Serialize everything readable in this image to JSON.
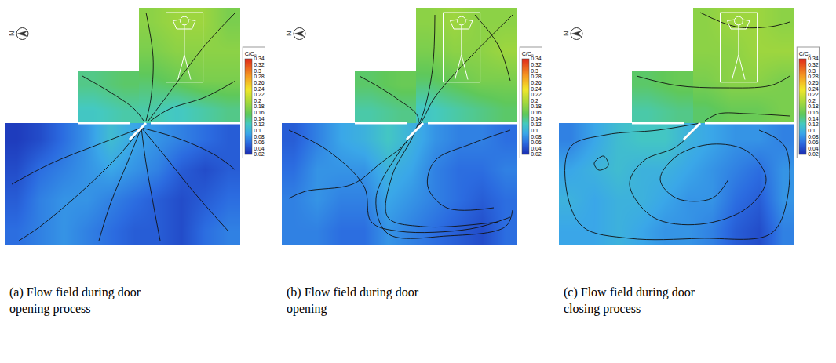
{
  "chart_data": [
    {
      "type": "heatmap",
      "title": "(a) Flow field during door opening process",
      "xlim": [
        0,
        10
      ],
      "ylim": [
        0,
        10.1
      ],
      "tick_labels": false,
      "annotations": [
        "N"
      ],
      "colorbar": {
        "title": "C/C₀",
        "range": [
          0.02,
          0.34
        ],
        "ticks": [
          0.02,
          0.04,
          0.06,
          0.08,
          0.1,
          0.12,
          0.14,
          0.16,
          0.18,
          0.2,
          0.22,
          0.24,
          0.26,
          0.28,
          0.3,
          0.32,
          0.34
        ]
      },
      "regions": {
        "lower": {
          "x": [
            0.5,
            1.5,
            2.5,
            3.5,
            4.5,
            5.5,
            6.5,
            7.5,
            8.5,
            9.5
          ],
          "y": [
            0.65,
            1.95,
            3.25,
            4.55
          ],
          "z": [
            [
              0.06,
              0.07,
              0.08,
              0.07,
              0.06,
              0.05,
              0.05,
              0.04,
              0.06,
              0.07
            ],
            [
              0.05,
              0.07,
              0.08,
              0.08,
              0.07,
              0.06,
              0.05,
              0.04,
              0.05,
              0.06
            ],
            [
              0.04,
              0.06,
              0.07,
              0.08,
              0.09,
              0.08,
              0.07,
              0.05,
              0.04,
              0.05
            ],
            [
              0.03,
              0.04,
              0.06,
              0.08,
              0.11,
              0.09,
              0.08,
              0.07,
              0.06,
              0.05
            ]
          ]
        },
        "upper_left": {
          "x": [
            3.75,
            5.05
          ],
          "y": [
            5.75,
            6.85
          ],
          "z": [
            [
              0.12,
              0.13
            ],
            [
              0.14,
              0.15
            ]
          ]
        },
        "upper_right": {
          "x": [
            6.2375,
            7.3125,
            8.3875,
            9.4625
          ],
          "y": [
            5.8125,
            7.0375,
            8.2625,
            9.4875
          ],
          "z": [
            [
              0.13,
              0.12,
              0.13,
              0.14
            ],
            [
              0.15,
              0.16,
              0.17,
              0.17
            ],
            [
              0.17,
              0.18,
              0.18,
              0.18
            ],
            [
              0.18,
              0.19,
              0.19,
              0.17
            ]
          ]
        }
      },
      "streamlines": [
        [
          [
            5.8,
            5.0
          ],
          [
            5.0,
            4.0
          ],
          [
            3.5,
            2.5
          ],
          [
            1.5,
            0.8
          ],
          [
            0.6,
            0.2
          ]
        ],
        [
          [
            5.8,
            5.0
          ],
          [
            5.2,
            3.5
          ],
          [
            4.5,
            1.8
          ],
          [
            4.0,
            0.2
          ]
        ],
        [
          [
            5.8,
            5.0
          ],
          [
            6.0,
            3.5
          ],
          [
            6.3,
            1.8
          ],
          [
            6.6,
            0.2
          ]
        ],
        [
          [
            5.8,
            5.0
          ],
          [
            6.8,
            3.8
          ],
          [
            8.0,
            2.3
          ],
          [
            9.5,
            0.6
          ]
        ],
        [
          [
            5.8,
            5.0
          ],
          [
            4.0,
            4.3
          ],
          [
            2.0,
            3.5
          ],
          [
            0.3,
            2.6
          ]
        ],
        [
          [
            5.8,
            5.0
          ],
          [
            7.5,
            4.5
          ],
          [
            9.0,
            3.8
          ],
          [
            9.8,
            3.2
          ]
        ],
        [
          [
            9.8,
            9.9
          ],
          [
            8.5,
            8.5
          ],
          [
            7.0,
            6.5
          ],
          [
            6.1,
            5.3
          ]
        ],
        [
          [
            6.0,
            9.9
          ],
          [
            6.3,
            8.0
          ],
          [
            6.2,
            6.2
          ],
          [
            6.0,
            5.3
          ]
        ],
        [
          [
            9.8,
            7.0
          ],
          [
            8.5,
            6.3
          ],
          [
            7.0,
            5.8
          ],
          [
            6.2,
            5.3
          ]
        ],
        [
          [
            3.3,
            7.2
          ],
          [
            4.5,
            6.5
          ],
          [
            5.5,
            5.8
          ],
          [
            5.9,
            5.3
          ]
        ]
      ]
    },
    {
      "type": "heatmap",
      "title": "(b) Flow field during door opening",
      "xlim": [
        0,
        10
      ],
      "ylim": [
        0,
        10.1
      ],
      "tick_labels": false,
      "annotations": [
        "N"
      ],
      "colorbar": {
        "title": "C/C₀",
        "range": [
          0.02,
          0.34
        ],
        "ticks": [
          0.02,
          0.04,
          0.06,
          0.08,
          0.1,
          0.12,
          0.14,
          0.16,
          0.18,
          0.2,
          0.22,
          0.24,
          0.26,
          0.28,
          0.3,
          0.32,
          0.34
        ]
      },
      "regions": {
        "lower": {
          "x": [
            0.5,
            1.5,
            2.5,
            3.5,
            4.5,
            5.5,
            6.5,
            7.5,
            8.5,
            9.5
          ],
          "y": [
            0.65,
            1.95,
            3.25,
            4.55
          ],
          "z": [
            [
              0.07,
              0.07,
              0.06,
              0.06,
              0.08,
              0.07,
              0.06,
              0.05,
              0.04,
              0.06
            ],
            [
              0.07,
              0.08,
              0.07,
              0.07,
              0.09,
              0.08,
              0.07,
              0.06,
              0.05,
              0.06
            ],
            [
              0.06,
              0.08,
              0.08,
              0.08,
              0.1,
              0.09,
              0.07,
              0.06,
              0.06,
              0.07
            ],
            [
              0.05,
              0.07,
              0.09,
              0.1,
              0.12,
              0.1,
              0.08,
              0.07,
              0.07,
              0.06
            ]
          ]
        },
        "upper_left": {
          "x": [
            3.75,
            5.05
          ],
          "y": [
            5.75,
            6.85
          ],
          "z": [
            [
              0.13,
              0.14
            ],
            [
              0.15,
              0.16
            ]
          ]
        },
        "upper_right": {
          "x": [
            6.2375,
            7.3125,
            8.3875,
            9.4625
          ],
          "y": [
            5.8125,
            7.0375,
            8.2625,
            9.4875
          ],
          "z": [
            [
              0.12,
              0.13,
              0.14,
              0.15
            ],
            [
              0.15,
              0.16,
              0.17,
              0.17
            ],
            [
              0.17,
              0.18,
              0.18,
              0.19
            ],
            [
              0.18,
              0.19,
              0.18,
              0.18
            ]
          ]
        }
      },
      "streamlines": [
        [
          [
            9.8,
            9.8
          ],
          [
            8.0,
            8.0
          ],
          [
            6.5,
            6.3
          ],
          [
            5.9,
            5.2
          ],
          [
            5.0,
            4.0
          ],
          [
            4.0,
            2.0
          ],
          [
            4.5,
            0.5
          ],
          [
            7.0,
            0.4
          ],
          [
            9.5,
            0.8
          ],
          [
            9.8,
            1.5
          ]
        ],
        [
          [
            6.5,
            9.8
          ],
          [
            6.4,
            7.5
          ],
          [
            6.0,
            5.6
          ],
          [
            5.5,
            4.5
          ],
          [
            4.7,
            3.0
          ],
          [
            4.5,
            1.2
          ],
          [
            6.0,
            0.8
          ],
          [
            9.2,
            1.0
          ]
        ],
        [
          [
            3.3,
            7.2
          ],
          [
            4.8,
            6.3
          ],
          [
            5.8,
            5.4
          ],
          [
            5.3,
            4.4
          ],
          [
            4.2,
            3.5
          ],
          [
            3.0,
            2.6
          ],
          [
            1.0,
            2.3
          ],
          [
            0.3,
            2.0
          ]
        ],
        [
          [
            0.3,
            4.9
          ],
          [
            2.0,
            4.0
          ],
          [
            3.5,
            2.5
          ],
          [
            3.8,
            1.0
          ],
          [
            5.0,
            0.6
          ],
          [
            8.0,
            0.7
          ],
          [
            9.7,
            1.2
          ]
        ],
        [
          [
            9.7,
            4.9
          ],
          [
            8.0,
            4.3
          ],
          [
            6.5,
            3.6
          ],
          [
            6.2,
            2.5
          ],
          [
            7.0,
            1.6
          ],
          [
            9.0,
            1.6
          ]
        ],
        [
          [
            8.2,
            9.8
          ],
          [
            9.2,
            8.5
          ],
          [
            9.7,
            7.0
          ]
        ]
      ]
    },
    {
      "type": "heatmap",
      "title": "(c) Flow field during door closing process",
      "xlim": [
        0,
        10
      ],
      "ylim": [
        0,
        10.1
      ],
      "tick_labels": false,
      "annotations": [
        "N"
      ],
      "colorbar": {
        "title": "C/C₀",
        "range": [
          0.02,
          0.34
        ],
        "ticks": [
          0.02,
          0.04,
          0.06,
          0.08,
          0.1,
          0.12,
          0.14,
          0.16,
          0.18,
          0.2,
          0.22,
          0.24,
          0.26,
          0.28,
          0.3,
          0.32,
          0.34
        ]
      },
      "regions": {
        "lower": {
          "x": [
            0.5,
            1.5,
            2.5,
            3.5,
            4.5,
            5.5,
            6.5,
            7.5,
            8.5,
            9.5
          ],
          "y": [
            0.65,
            1.95,
            3.25,
            4.55
          ],
          "z": [
            [
              0.09,
              0.09,
              0.1,
              0.09,
              0.08,
              0.08,
              0.07,
              0.05,
              0.04,
              0.07
            ],
            [
              0.1,
              0.09,
              0.1,
              0.1,
              0.09,
              0.08,
              0.08,
              0.06,
              0.05,
              0.08
            ],
            [
              0.09,
              0.1,
              0.11,
              0.1,
              0.1,
              0.09,
              0.08,
              0.07,
              0.06,
              0.08
            ],
            [
              0.07,
              0.09,
              0.11,
              0.12,
              0.12,
              0.1,
              0.09,
              0.08,
              0.08,
              0.07
            ]
          ]
        },
        "upper_left": {
          "x": [
            3.75,
            5.05
          ],
          "y": [
            5.75,
            6.85
          ],
          "z": [
            [
              0.13,
              0.14
            ],
            [
              0.15,
              0.16
            ]
          ]
        },
        "upper_right": {
          "x": [
            6.2375,
            7.3125,
            8.3875,
            9.4625
          ],
          "y": [
            5.8125,
            7.0375,
            8.2625,
            9.4875
          ],
          "z": [
            [
              0.15,
              0.16,
              0.16,
              0.17
            ],
            [
              0.17,
              0.18,
              0.18,
              0.17
            ],
            [
              0.18,
              0.18,
              0.19,
              0.19
            ],
            [
              0.18,
              0.19,
              0.19,
              0.18
            ]
          ]
        }
      },
      "streamlines": [
        [
          [
            6.0,
            5.2
          ],
          [
            5.0,
            4.2
          ],
          [
            3.6,
            3.6
          ],
          [
            3.0,
            2.6
          ],
          [
            4.0,
            1.2
          ],
          [
            6.0,
            0.9
          ],
          [
            8.0,
            1.6
          ],
          [
            8.8,
            2.8
          ],
          [
            8.0,
            4.0
          ],
          [
            6.5,
            4.3
          ],
          [
            5.0,
            3.8
          ],
          [
            4.3,
            2.8
          ],
          [
            5.0,
            2.0
          ],
          [
            6.5,
            2.0
          ],
          [
            7.2,
            2.8
          ]
        ],
        [
          [
            6.0,
            5.2
          ],
          [
            4.2,
            4.9
          ],
          [
            2.0,
            4.7
          ],
          [
            0.5,
            4.2
          ],
          [
            0.3,
            2.5
          ],
          [
            1.0,
            0.8
          ],
          [
            3.0,
            0.3
          ],
          [
            6.0,
            0.3
          ],
          [
            9.0,
            0.5
          ],
          [
            9.7,
            2.0
          ],
          [
            9.6,
            4.2
          ],
          [
            8.5,
            4.9
          ]
        ],
        [
          [
            1.5,
            3.5
          ],
          [
            1.9,
            3.8
          ],
          [
            2.1,
            3.4
          ],
          [
            1.7,
            3.2
          ],
          [
            1.5,
            3.5
          ]
        ],
        [
          [
            3.3,
            7.2
          ],
          [
            5.0,
            6.8
          ],
          [
            7.0,
            6.7
          ],
          [
            9.0,
            6.8
          ],
          [
            9.8,
            7.2
          ]
        ],
        [
          [
            9.8,
            5.5
          ],
          [
            8.0,
            5.6
          ],
          [
            6.8,
            5.6
          ],
          [
            6.2,
            5.3
          ]
        ],
        [
          [
            6.0,
            9.9
          ],
          [
            7.5,
            9.3
          ],
          [
            9.0,
            9.3
          ],
          [
            9.8,
            9.5
          ]
        ]
      ]
    }
  ]
}
